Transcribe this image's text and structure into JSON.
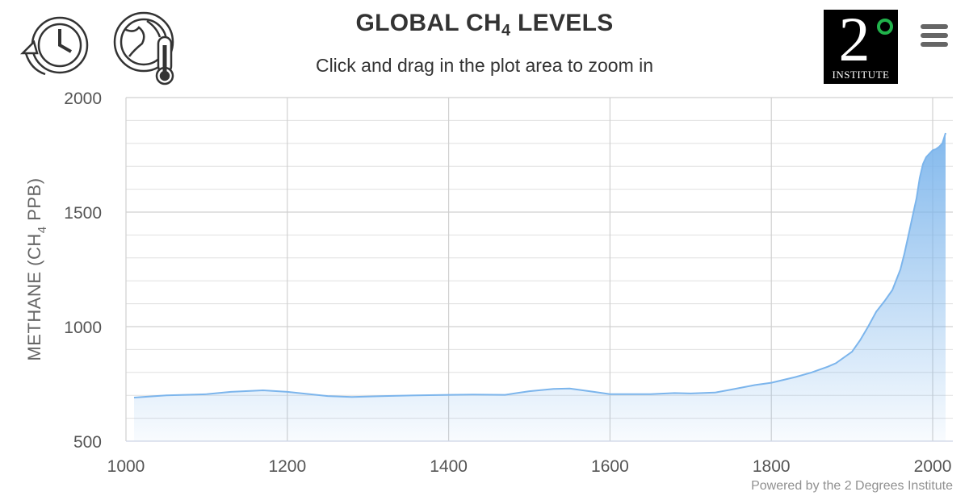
{
  "title": {
    "main": "GLOBAL CH",
    "sub": "4",
    "suffix": " LEVELS"
  },
  "subtitle": "Click and drag in the plot area to zoom in",
  "icons": {
    "history": "history-icon",
    "temperature": "globe-thermometer-icon",
    "menu": "hamburger-menu-icon"
  },
  "logo": {
    "numeral": "2",
    "text": "INSTITUTE"
  },
  "credits": "Powered by the 2 Degrees Institute",
  "chart_data": {
    "type": "area",
    "title": "GLOBAL CH4 LEVELS",
    "ylabel": {
      "main": "METHANE (CH",
      "sub": "4",
      "suffix": " PPB)"
    },
    "xlabel": "",
    "xlim": [
      1000,
      2025
    ],
    "ylim": [
      500,
      2000
    ],
    "xticks": [
      1000,
      1200,
      1400,
      1600,
      1800,
      2000
    ],
    "yticks": [
      500,
      1000,
      1500,
      2000
    ],
    "minor_grid_step": 100,
    "grid": true,
    "legend": "none",
    "colors": {
      "line": "#7cb5ec",
      "fill_top": "#7cb5ec",
      "grid": "#e0e0e0",
      "major_grid": "#d0d0d0"
    },
    "series": [
      {
        "x": [
          1010,
          1050,
          1100,
          1130,
          1170,
          1200,
          1250,
          1280,
          1320,
          1360,
          1400,
          1430,
          1470,
          1500,
          1530,
          1550,
          1580,
          1600,
          1650,
          1680,
          1700,
          1730,
          1750,
          1780,
          1800,
          1830,
          1850,
          1870,
          1880,
          1900,
          1910,
          1920,
          1930,
          1940,
          1950,
          1960,
          1965,
          1970,
          1975,
          1980,
          1984,
          1988,
          1992,
          1996,
          2000,
          2004,
          2008,
          2012,
          2016
        ],
        "y": [
          690,
          700,
          705,
          715,
          722,
          715,
          697,
          693,
          697,
          700,
          702,
          703,
          702,
          718,
          728,
          730,
          715,
          705,
          705,
          710,
          708,
          712,
          725,
          745,
          755,
          780,
          800,
          825,
          840,
          890,
          940,
          1000,
          1065,
          1110,
          1160,
          1250,
          1320,
          1400,
          1480,
          1560,
          1650,
          1710,
          1740,
          1755,
          1770,
          1775,
          1785,
          1800,
          1845
        ]
      }
    ]
  }
}
